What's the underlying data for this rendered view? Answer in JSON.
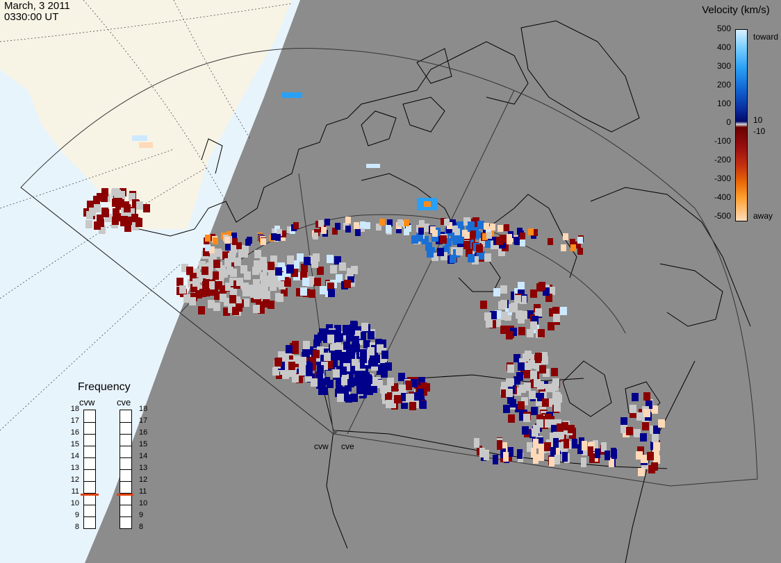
{
  "header": {
    "date": "March, 3 2011",
    "time": "0330:00 UT"
  },
  "colorbar": {
    "title": "Velocity (km/s)",
    "ticks": [
      "500",
      "400",
      "300",
      "200",
      "100",
      "0",
      "-100",
      "-200",
      "-300",
      "-400",
      "-500"
    ],
    "side_labels": {
      "top": "toward",
      "pos_small": "10",
      "neg_small": "-10",
      "bottom": "away"
    },
    "colors": {
      "toward_max": "#d8f0ff",
      "toward_mid": "#1060d0",
      "near_zero_pos": "#020a6a",
      "near_zero_neg": "#6a0000",
      "away_mid": "#ea6a08",
      "away_max": "#ffdcb8",
      "ground_scatter": "#c8c8c8"
    }
  },
  "frequency_panel": {
    "title": "Frequency",
    "radars": [
      {
        "name": "cvw",
        "freq_mhz": 10.8
      },
      {
        "name": "cve",
        "freq_mhz": 10.8
      }
    ],
    "scale": [
      "18",
      "17",
      "16",
      "15",
      "14",
      "13",
      "12",
      "11",
      "10",
      "9",
      "8"
    ]
  },
  "radar_sites": [
    "cvw",
    "cve"
  ],
  "map": {
    "land_color": "#f7f4e6",
    "ocean_color": "#e8f4fc",
    "night_color": "#8c8c8c",
    "coast_color": "#000000"
  }
}
